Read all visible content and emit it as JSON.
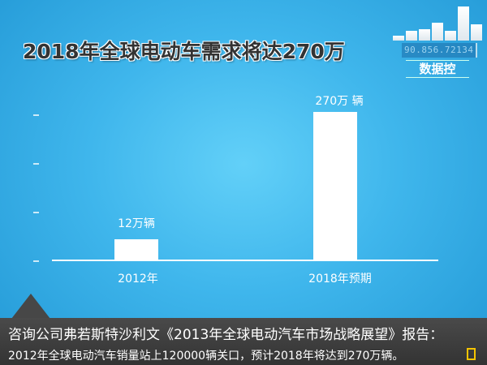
{
  "title": "2018年全球电动车需求将达270万",
  "logo": {
    "number": "90.856.72134",
    "name": "数据控"
  },
  "chart_data": {
    "type": "bar",
    "categories": [
      "2012年",
      "2018年预期"
    ],
    "values": [
      12,
      270
    ],
    "data_labels": [
      "12万辆",
      "270万 辆"
    ],
    "unit": "万辆",
    "grid": false,
    "color": "#ffffff"
  },
  "footer": {
    "line1": "咨询公司弗若斯特沙利文《2013年全球电动汽车市场战略展望》报告：",
    "line2": "2012年全球电动汽车销量站上120000辆关口，预计2018年将达到270万辆。"
  }
}
